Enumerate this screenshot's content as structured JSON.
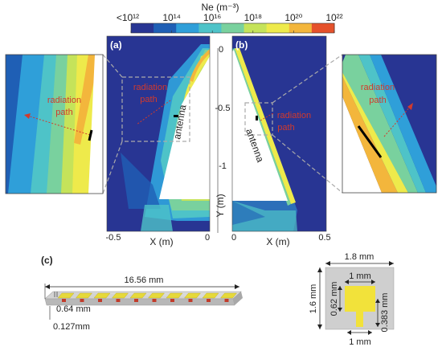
{
  "colorbar": {
    "label": "Ne (m⁻³)",
    "colors": [
      "#283593",
      "#1f5fb5",
      "#2f9fd9",
      "#4ec3c8",
      "#79d19e",
      "#c5e35a",
      "#eeea4b",
      "#f3b63c",
      "#e5512b"
    ],
    "tick_labels": [
      "<10¹²",
      "10¹⁴",
      "10¹⁶",
      "10¹⁸",
      "10²⁰",
      "10²²"
    ]
  },
  "panel_a": {
    "tag": "(a)",
    "xlabel": "X (m)",
    "x_ticks": [
      "-0.5",
      "0"
    ],
    "radiation_label": [
      "radiation",
      "path"
    ],
    "antenna_label": "antenna"
  },
  "panel_b": {
    "tag": "(b)",
    "xlabel": "X (m)",
    "x_ticks": [
      "0",
      "0.5"
    ],
    "radiation_label": [
      "radiation",
      "path"
    ],
    "antenna_label": "antenna"
  },
  "y_axis": {
    "label": "Y (m)",
    "ticks": [
      "0",
      "-0.5",
      "-1"
    ]
  },
  "inset_left": {
    "radiation_label": [
      "radiation",
      "path"
    ]
  },
  "inset_right": {
    "radiation_label": [
      "radiation",
      "path"
    ]
  },
  "panel_c": {
    "tag": "(c)",
    "array_length": "16.56 mm",
    "pitch": "0.64 mm",
    "thickness": "0.127mm",
    "element_count": 10,
    "element_width": "1.8 mm",
    "element_height": "1.6 mm",
    "patch_width": "1 mm",
    "patch_height": "0.62 mm",
    "feed_length": "0.383 mm",
    "feed_width": "1 mm"
  }
}
